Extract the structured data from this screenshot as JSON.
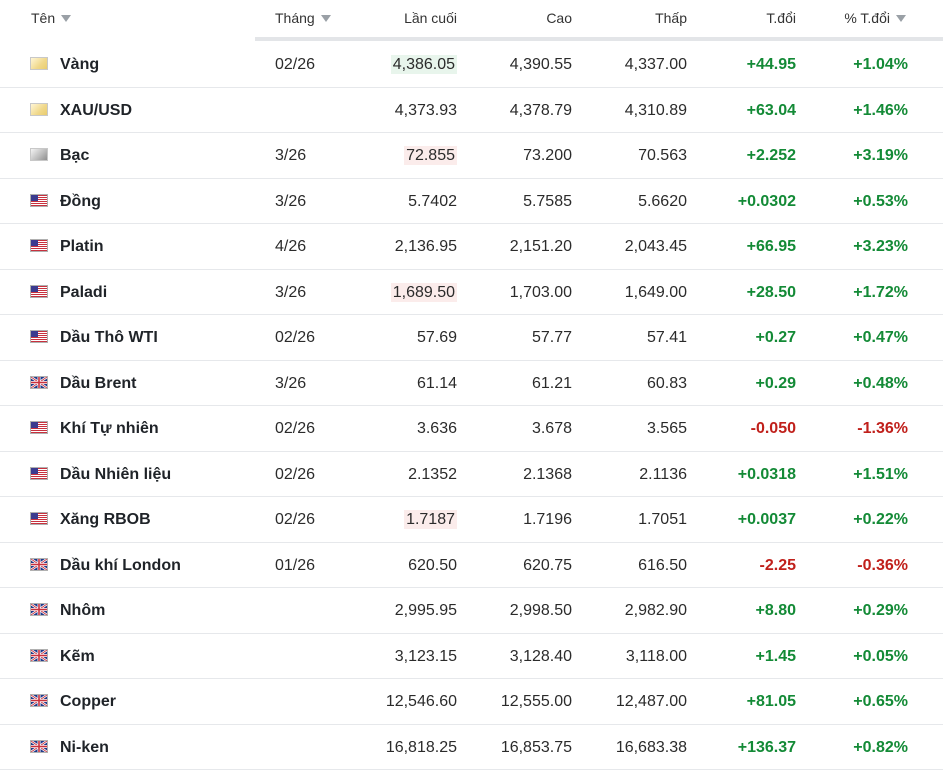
{
  "columns": {
    "name": "Tên",
    "month": "Tháng",
    "last": "Lần cuối",
    "high": "Cao",
    "low": "Thấp",
    "change": "T.đổi",
    "change_pct": "% T.đổi"
  },
  "colors": {
    "positive": "#138a36",
    "negative": "#c0201b"
  },
  "rows": [
    {
      "flag": "gold-icon",
      "name": "Vàng",
      "month": "02/26",
      "last": "4,386.05",
      "last_hl": "up",
      "high": "4,390.55",
      "low": "4,337.00",
      "change": "+44.95",
      "pct": "+1.04%",
      "dir": "pos"
    },
    {
      "flag": "gold-icon",
      "name": "XAU/USD",
      "month": "",
      "last": "4,373.93",
      "last_hl": "",
      "high": "4,378.79",
      "low": "4,310.89",
      "change": "+63.04",
      "pct": "+1.46%",
      "dir": "pos"
    },
    {
      "flag": "silver-icon",
      "name": "Bạc",
      "month": "3/26",
      "last": "72.855",
      "last_hl": "down",
      "high": "73.200",
      "low": "70.563",
      "change": "+2.252",
      "pct": "+3.19%",
      "dir": "pos"
    },
    {
      "flag": "us-flag-icon",
      "name": "Đồng",
      "month": "3/26",
      "last": "5.7402",
      "last_hl": "",
      "high": "5.7585",
      "low": "5.6620",
      "change": "+0.0302",
      "pct": "+0.53%",
      "dir": "pos"
    },
    {
      "flag": "us-flag-icon",
      "name": "Platin",
      "month": "4/26",
      "last": "2,136.95",
      "last_hl": "",
      "high": "2,151.20",
      "low": "2,043.45",
      "change": "+66.95",
      "pct": "+3.23%",
      "dir": "pos"
    },
    {
      "flag": "us-flag-icon",
      "name": "Paladi",
      "month": "3/26",
      "last": "1,689.50",
      "last_hl": "down",
      "high": "1,703.00",
      "low": "1,649.00",
      "change": "+28.50",
      "pct": "+1.72%",
      "dir": "pos"
    },
    {
      "flag": "us-flag-icon",
      "name": "Dầu Thô WTI",
      "month": "02/26",
      "last": "57.69",
      "last_hl": "",
      "high": "57.77",
      "low": "57.41",
      "change": "+0.27",
      "pct": "+0.47%",
      "dir": "pos"
    },
    {
      "flag": "uk-flag-icon",
      "name": "Dầu Brent",
      "month": "3/26",
      "last": "61.14",
      "last_hl": "",
      "high": "61.21",
      "low": "60.83",
      "change": "+0.29",
      "pct": "+0.48%",
      "dir": "pos"
    },
    {
      "flag": "us-flag-icon",
      "name": "Khí Tự nhiên",
      "month": "02/26",
      "last": "3.636",
      "last_hl": "",
      "high": "3.678",
      "low": "3.565",
      "change": "-0.050",
      "pct": "-1.36%",
      "dir": "neg"
    },
    {
      "flag": "us-flag-icon",
      "name": "Dầu Nhiên liệu",
      "month": "02/26",
      "last": "2.1352",
      "last_hl": "",
      "high": "2.1368",
      "low": "2.1136",
      "change": "+0.0318",
      "pct": "+1.51%",
      "dir": "pos"
    },
    {
      "flag": "us-flag-icon",
      "name": "Xăng RBOB",
      "month": "02/26",
      "last": "1.7187",
      "last_hl": "down",
      "high": "1.7196",
      "low": "1.7051",
      "change": "+0.0037",
      "pct": "+0.22%",
      "dir": "pos"
    },
    {
      "flag": "uk-flag-icon",
      "name": "Dầu khí London",
      "month": "01/26",
      "last": "620.50",
      "last_hl": "",
      "high": "620.75",
      "low": "616.50",
      "change": "-2.25",
      "pct": "-0.36%",
      "dir": "neg"
    },
    {
      "flag": "uk-flag-icon",
      "name": "Nhôm",
      "month": "",
      "last": "2,995.95",
      "last_hl": "",
      "high": "2,998.50",
      "low": "2,982.90",
      "change": "+8.80",
      "pct": "+0.29%",
      "dir": "pos"
    },
    {
      "flag": "uk-flag-icon",
      "name": "Kẽm",
      "month": "",
      "last": "3,123.15",
      "last_hl": "",
      "high": "3,128.40",
      "low": "3,118.00",
      "change": "+1.45",
      "pct": "+0.05%",
      "dir": "pos"
    },
    {
      "flag": "uk-flag-icon",
      "name": "Copper",
      "month": "",
      "last": "12,546.60",
      "last_hl": "",
      "high": "12,555.00",
      "low": "12,487.00",
      "change": "+81.05",
      "pct": "+0.65%",
      "dir": "pos"
    },
    {
      "flag": "uk-flag-icon",
      "name": "Ni-ken",
      "month": "",
      "last": "16,818.25",
      "last_hl": "",
      "high": "16,853.75",
      "low": "16,683.38",
      "change": "+136.37",
      "pct": "+0.82%",
      "dir": "pos"
    }
  ]
}
